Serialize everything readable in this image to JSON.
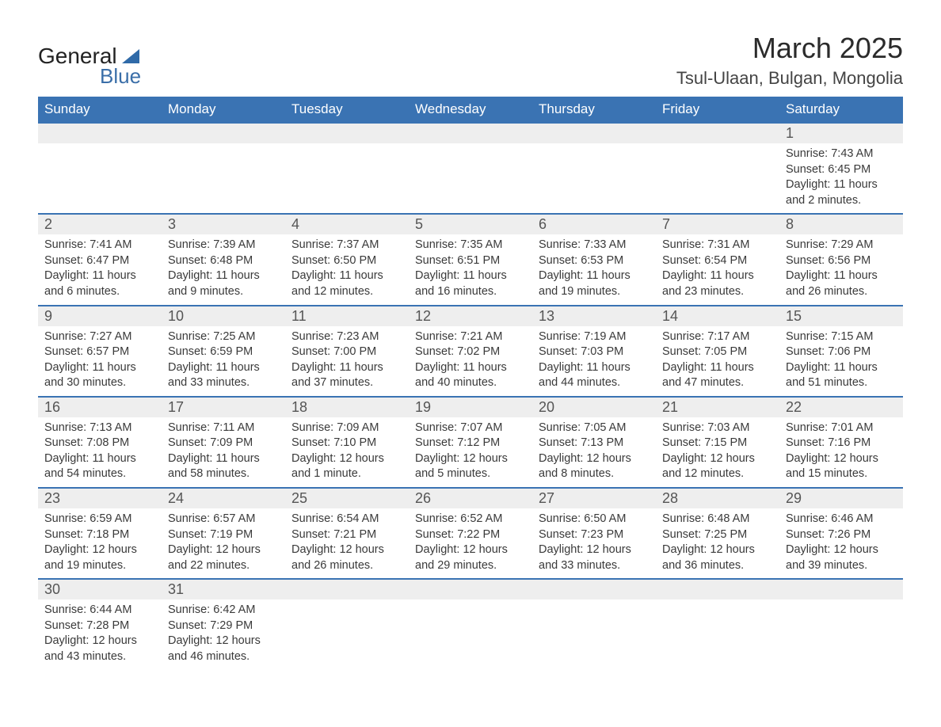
{
  "logo": {
    "word1": "General",
    "word2": "Blue"
  },
  "header": {
    "title": "March 2025",
    "subtitle": "Tsul-Ulaan, Bulgan, Mongolia"
  },
  "styling": {
    "header_bg": "#3a73b3",
    "header_fg": "#ffffff",
    "daynum_bg": "#eeeeee",
    "border_color": "#3a73b3",
    "text_color": "#3a3a3a",
    "title_fontsize": 36,
    "subtitle_fontsize": 22,
    "weekday_fontsize": 17,
    "daynum_fontsize": 18,
    "body_fontsize": 14.5
  },
  "weekdays": [
    "Sunday",
    "Monday",
    "Tuesday",
    "Wednesday",
    "Thursday",
    "Friday",
    "Saturday"
  ],
  "weeks": [
    [
      null,
      null,
      null,
      null,
      null,
      null,
      {
        "num": "1",
        "sunrise": "Sunrise: 7:43 AM",
        "sunset": "Sunset: 6:45 PM",
        "daylight": "Daylight: 11 hours and 2 minutes."
      }
    ],
    [
      {
        "num": "2",
        "sunrise": "Sunrise: 7:41 AM",
        "sunset": "Sunset: 6:47 PM",
        "daylight": "Daylight: 11 hours and 6 minutes."
      },
      {
        "num": "3",
        "sunrise": "Sunrise: 7:39 AM",
        "sunset": "Sunset: 6:48 PM",
        "daylight": "Daylight: 11 hours and 9 minutes."
      },
      {
        "num": "4",
        "sunrise": "Sunrise: 7:37 AM",
        "sunset": "Sunset: 6:50 PM",
        "daylight": "Daylight: 11 hours and 12 minutes."
      },
      {
        "num": "5",
        "sunrise": "Sunrise: 7:35 AM",
        "sunset": "Sunset: 6:51 PM",
        "daylight": "Daylight: 11 hours and 16 minutes."
      },
      {
        "num": "6",
        "sunrise": "Sunrise: 7:33 AM",
        "sunset": "Sunset: 6:53 PM",
        "daylight": "Daylight: 11 hours and 19 minutes."
      },
      {
        "num": "7",
        "sunrise": "Sunrise: 7:31 AM",
        "sunset": "Sunset: 6:54 PM",
        "daylight": "Daylight: 11 hours and 23 minutes."
      },
      {
        "num": "8",
        "sunrise": "Sunrise: 7:29 AM",
        "sunset": "Sunset: 6:56 PM",
        "daylight": "Daylight: 11 hours and 26 minutes."
      }
    ],
    [
      {
        "num": "9",
        "sunrise": "Sunrise: 7:27 AM",
        "sunset": "Sunset: 6:57 PM",
        "daylight": "Daylight: 11 hours and 30 minutes."
      },
      {
        "num": "10",
        "sunrise": "Sunrise: 7:25 AM",
        "sunset": "Sunset: 6:59 PM",
        "daylight": "Daylight: 11 hours and 33 minutes."
      },
      {
        "num": "11",
        "sunrise": "Sunrise: 7:23 AM",
        "sunset": "Sunset: 7:00 PM",
        "daylight": "Daylight: 11 hours and 37 minutes."
      },
      {
        "num": "12",
        "sunrise": "Sunrise: 7:21 AM",
        "sunset": "Sunset: 7:02 PM",
        "daylight": "Daylight: 11 hours and 40 minutes."
      },
      {
        "num": "13",
        "sunrise": "Sunrise: 7:19 AM",
        "sunset": "Sunset: 7:03 PM",
        "daylight": "Daylight: 11 hours and 44 minutes."
      },
      {
        "num": "14",
        "sunrise": "Sunrise: 7:17 AM",
        "sunset": "Sunset: 7:05 PM",
        "daylight": "Daylight: 11 hours and 47 minutes."
      },
      {
        "num": "15",
        "sunrise": "Sunrise: 7:15 AM",
        "sunset": "Sunset: 7:06 PM",
        "daylight": "Daylight: 11 hours and 51 minutes."
      }
    ],
    [
      {
        "num": "16",
        "sunrise": "Sunrise: 7:13 AM",
        "sunset": "Sunset: 7:08 PM",
        "daylight": "Daylight: 11 hours and 54 minutes."
      },
      {
        "num": "17",
        "sunrise": "Sunrise: 7:11 AM",
        "sunset": "Sunset: 7:09 PM",
        "daylight": "Daylight: 11 hours and 58 minutes."
      },
      {
        "num": "18",
        "sunrise": "Sunrise: 7:09 AM",
        "sunset": "Sunset: 7:10 PM",
        "daylight": "Daylight: 12 hours and 1 minute."
      },
      {
        "num": "19",
        "sunrise": "Sunrise: 7:07 AM",
        "sunset": "Sunset: 7:12 PM",
        "daylight": "Daylight: 12 hours and 5 minutes."
      },
      {
        "num": "20",
        "sunrise": "Sunrise: 7:05 AM",
        "sunset": "Sunset: 7:13 PM",
        "daylight": "Daylight: 12 hours and 8 minutes."
      },
      {
        "num": "21",
        "sunrise": "Sunrise: 7:03 AM",
        "sunset": "Sunset: 7:15 PM",
        "daylight": "Daylight: 12 hours and 12 minutes."
      },
      {
        "num": "22",
        "sunrise": "Sunrise: 7:01 AM",
        "sunset": "Sunset: 7:16 PM",
        "daylight": "Daylight: 12 hours and 15 minutes."
      }
    ],
    [
      {
        "num": "23",
        "sunrise": "Sunrise: 6:59 AM",
        "sunset": "Sunset: 7:18 PM",
        "daylight": "Daylight: 12 hours and 19 minutes."
      },
      {
        "num": "24",
        "sunrise": "Sunrise: 6:57 AM",
        "sunset": "Sunset: 7:19 PM",
        "daylight": "Daylight: 12 hours and 22 minutes."
      },
      {
        "num": "25",
        "sunrise": "Sunrise: 6:54 AM",
        "sunset": "Sunset: 7:21 PM",
        "daylight": "Daylight: 12 hours and 26 minutes."
      },
      {
        "num": "26",
        "sunrise": "Sunrise: 6:52 AM",
        "sunset": "Sunset: 7:22 PM",
        "daylight": "Daylight: 12 hours and 29 minutes."
      },
      {
        "num": "27",
        "sunrise": "Sunrise: 6:50 AM",
        "sunset": "Sunset: 7:23 PM",
        "daylight": "Daylight: 12 hours and 33 minutes."
      },
      {
        "num": "28",
        "sunrise": "Sunrise: 6:48 AM",
        "sunset": "Sunset: 7:25 PM",
        "daylight": "Daylight: 12 hours and 36 minutes."
      },
      {
        "num": "29",
        "sunrise": "Sunrise: 6:46 AM",
        "sunset": "Sunset: 7:26 PM",
        "daylight": "Daylight: 12 hours and 39 minutes."
      }
    ],
    [
      {
        "num": "30",
        "sunrise": "Sunrise: 6:44 AM",
        "sunset": "Sunset: 7:28 PM",
        "daylight": "Daylight: 12 hours and 43 minutes."
      },
      {
        "num": "31",
        "sunrise": "Sunrise: 6:42 AM",
        "sunset": "Sunset: 7:29 PM",
        "daylight": "Daylight: 12 hours and 46 minutes."
      },
      null,
      null,
      null,
      null,
      null
    ]
  ]
}
